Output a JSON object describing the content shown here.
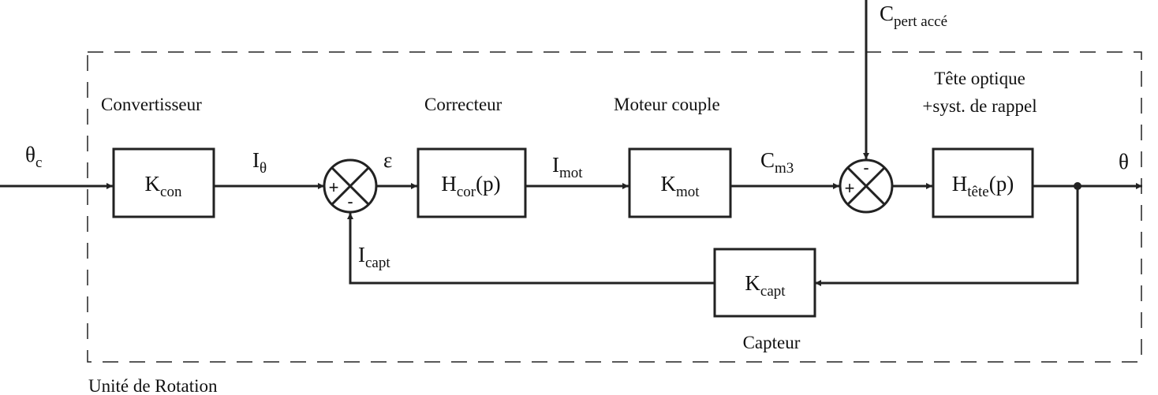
{
  "frame_label": "Unité de Rotation",
  "section_titles": {
    "convertisseur": "Convertisseur",
    "correcteur": "Correcteur",
    "moteur": "Moteur couple",
    "tete_line1": "Tête optique",
    "tete_line2": "+syst. de rappel",
    "capteur": "Capteur"
  },
  "blocks": {
    "kcon": {
      "main": "K",
      "sub": "con"
    },
    "hcor": {
      "main": "H",
      "sub": "cor",
      "suffix": "(p)"
    },
    "kmot": {
      "main": "K",
      "sub": "mot"
    },
    "htete": {
      "main": "H",
      "sub": "tête",
      "suffix": "(p)"
    },
    "kcapt": {
      "main": "K",
      "sub": "capt"
    }
  },
  "signals": {
    "theta_c": {
      "main": "θ",
      "sub": "c"
    },
    "i_theta": {
      "main": "I",
      "sub": "θ"
    },
    "epsilon": {
      "main": "ε"
    },
    "i_mot": {
      "main": "I",
      "sub": "mot"
    },
    "c_m3": {
      "main": "C",
      "sub": "m3"
    },
    "c_pert": {
      "main": "C",
      "sub": "pert accé"
    },
    "theta": {
      "main": "θ"
    },
    "i_capt": {
      "main": "I",
      "sub": "capt"
    }
  },
  "summers": {
    "s1": {
      "plus": "+",
      "minus": "-"
    },
    "s2": {
      "plus": "+",
      "minus": "-"
    }
  }
}
